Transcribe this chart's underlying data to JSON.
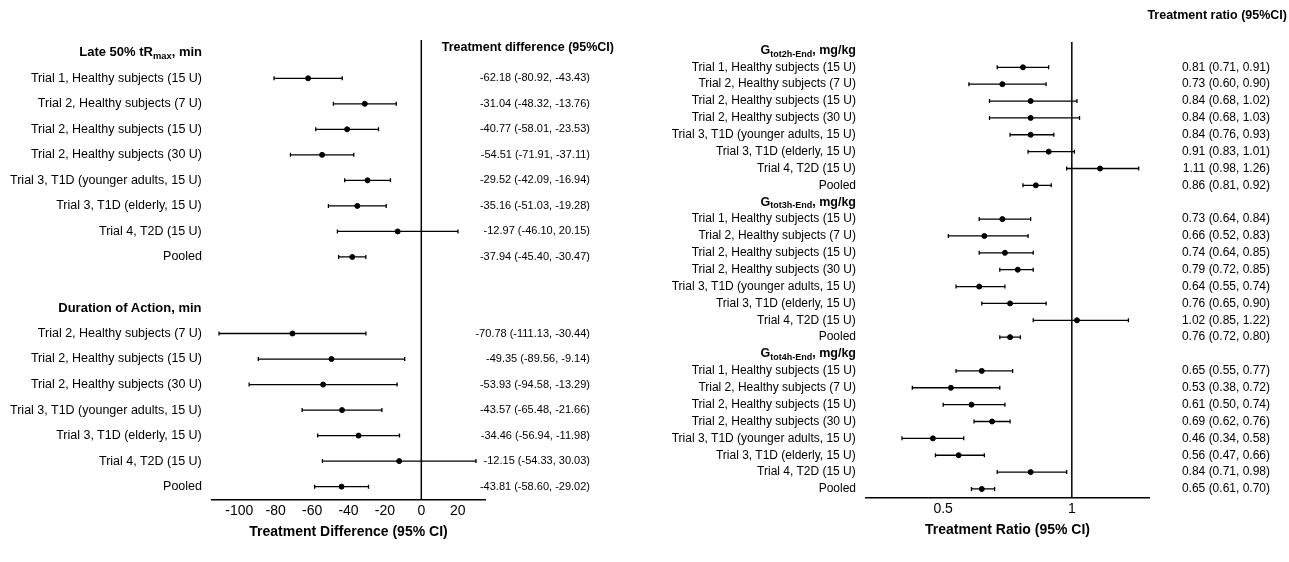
{
  "chart_data": [
    {
      "type": "scatter",
      "orientation": "horizontal",
      "annotations": [
        "Treatment difference (95%CI)"
      ],
      "xlabel": "Treatment Difference (95% CI)",
      "color": "#000000",
      "marker": "circle",
      "xlim": [
        -115,
        35
      ],
      "xticks": [
        -100,
        -80,
        -60,
        -40,
        -20,
        0,
        20
      ],
      "categories": [
        "Late 50% tR$_{max}$, min",
        "Trial 1, Healthy subjects (15 U)",
        "Trial 2, Healthy subjects (7 U)",
        "Trial 2, Healthy subjects (15 U)",
        "Trial 2, Healthy subjects (30 U)",
        "Trial 3, T1D (younger adults, 15 U)",
        "Trial 3, T1D (elderly, 15 U)",
        "Trial 4, T2D (15 U)",
        "Pooled",
        null,
        "Duration of Action, min",
        "Trial 2, Healthy subjects (7 U)",
        "Trial 2, Healthy subjects (15 U)",
        "Trial 2, Healthy subjects (30 U)",
        "Trial 3, T1D (younger adults, 15 U)",
        "Trial 3, T1D (elderly, 15 U)",
        "Trial 4, T2D (15 U)",
        "Pooled"
      ],
      "values": [
        null,
        -62.18,
        -31.04,
        -40.77,
        -54.51,
        -29.52,
        -35.16,
        -12.97,
        -37.94,
        null,
        null,
        -70.78,
        -49.35,
        -53.93,
        -43.57,
        -34.46,
        -12.15,
        -43.81
      ],
      "errors": [
        null,
        [
          -80.92,
          -43.43
        ],
        [
          -48.32,
          -13.76
        ],
        [
          -58.01,
          -23.53
        ],
        [
          -71.91,
          -37.11
        ],
        [
          -42.09,
          -16.94
        ],
        [
          -51.03,
          -19.28
        ],
        [
          -46.1,
          20.15
        ],
        [
          -45.4,
          -30.47
        ],
        null,
        null,
        [
          -111.13,
          -30.44
        ],
        [
          -89.56,
          -9.14
        ],
        [
          -94.58,
          -13.29
        ],
        [
          -65.48,
          -21.66
        ],
        [
          -56.94,
          -11.98
        ],
        [
          -54.33,
          30.03
        ],
        [
          -58.6,
          -29.02
        ]
      ],
      "value_labels": [
        null,
        "-62.18 (-80.92, -43.43)",
        "-31.04 (-48.32, -13.76)",
        "-40.77 (-58.01, -23.53)",
        "-54.51 (-71.91, -37.11)",
        "-29.52 (-42.09, -16.94)",
        "-35.16 (-51.03, -19.28)",
        "-12.97 (-46.10, 20.15)",
        "-37.94 (-45.40, -30.47)",
        null,
        null,
        "-70.78 (-111.13, -30.44)",
        "-49.35 (-89.56, -9.14)",
        "-53.93 (-94.58, -13.29)",
        "-43.57 (-65.48, -21.66)",
        "-34.46 (-56.94, -11.98)",
        "-12.15 (-54.33, 30.03)",
        "-43.81 (-58.60, -29.02)"
      ],
      "ref_lines": [
        {
          "axis": "x",
          "value": 0
        }
      ]
    },
    {
      "type": "scatter",
      "orientation": "horizontal",
      "annotations": [
        "Treatment ratio (95%CI)"
      ],
      "xlabel": "Treatment Ratio (95% CI)",
      "color": "#000000",
      "marker": "circle",
      "xlim": [
        0.2,
        1.3
      ],
      "xticks": [
        0.5,
        1
      ],
      "categories": [
        "G$_{tot2h-End}$, mg/kg",
        "Trial 1, Healthy subjects (15 U)",
        "Trial 2, Healthy subjects (7 U)",
        "Trial 2, Healthy subjects (15 U)",
        "Trial 2, Healthy subjects (30 U)",
        "Trial 3, T1D (younger adults, 15 U)",
        "Trial 3, T1D (elderly, 15 U)",
        "Trial 4, T2D (15 U)",
        "Pooled",
        "G$_{tot3h-End}$, mg/kg",
        "Trial 1, Healthy subjects (15 U)",
        "Trial 2, Healthy subjects (7 U)",
        "Trial 2, Healthy subjects (15 U)",
        "Trial 2, Healthy subjects (30 U)",
        "Trial 3, T1D (younger adults, 15 U)",
        "Trial 3, T1D (elderly, 15 U)",
        "Trial 4, T2D (15 U)",
        "Pooled",
        "G$_{tot4h-End}$, mg/kg",
        "Trial 1, Healthy subjects (15 U)",
        "Trial 2, Healthy subjects (7 U)",
        "Trial 2, Healthy subjects (15 U)",
        "Trial 2, Healthy subjects (30 U)",
        "Trial 3, T1D (younger adults, 15 U)",
        "Trial 3, T1D (elderly, 15 U)",
        "Trial 4, T2D (15 U)",
        "Pooled"
      ],
      "values": [
        null,
        0.81,
        0.73,
        0.84,
        0.84,
        0.84,
        0.91,
        1.11,
        0.86,
        null,
        0.73,
        0.66,
        0.74,
        0.79,
        0.64,
        0.76,
        1.02,
        0.76,
        null,
        0.65,
        0.53,
        0.61,
        0.69,
        0.46,
        0.56,
        0.84,
        0.65
      ],
      "errors": [
        null,
        [
          0.71,
          0.91
        ],
        [
          0.6,
          0.9
        ],
        [
          0.68,
          1.02
        ],
        [
          0.68,
          1.03
        ],
        [
          0.76,
          0.93
        ],
        [
          0.83,
          1.01
        ],
        [
          0.98,
          1.26
        ],
        [
          0.81,
          0.92
        ],
        null,
        [
          0.64,
          0.84
        ],
        [
          0.52,
          0.83
        ],
        [
          0.64,
          0.85
        ],
        [
          0.72,
          0.85
        ],
        [
          0.55,
          0.74
        ],
        [
          0.65,
          0.9
        ],
        [
          0.85,
          1.22
        ],
        [
          0.72,
          0.8
        ],
        null,
        [
          0.55,
          0.77
        ],
        [
          0.38,
          0.72
        ],
        [
          0.5,
          0.74
        ],
        [
          0.62,
          0.76
        ],
        [
          0.34,
          0.58
        ],
        [
          0.47,
          0.66
        ],
        [
          0.71,
          0.98
        ],
        [
          0.61,
          0.7
        ]
      ],
      "value_labels": [
        null,
        "0.81 (0.71, 0.91)",
        "0.73 (0.60, 0.90)",
        "0.84 (0.68, 1.02)",
        "0.84 (0.68, 1.03)",
        "0.84 (0.76, 0.93)",
        "0.91 (0.83, 1.01)",
        "1.11 (0.98, 1.26)",
        "0.86 (0.81, 0.92)",
        null,
        "0.73 (0.64, 0.84)",
        "0.66 (0.52, 0.83)",
        "0.74 (0.64, 0.85)",
        "0.79 (0.72, 0.85)",
        "0.64 (0.55, 0.74)",
        "0.76 (0.65, 0.90)",
        "1.02 (0.85, 1.22)",
        "0.76 (0.72, 0.80)",
        null,
        "0.65 (0.55, 0.77)",
        "0.53 (0.38, 0.72)",
        "0.61 (0.50, 0.74)",
        "0.69 (0.62, 0.76)",
        "0.46 (0.34, 0.58)",
        "0.56 (0.47, 0.66)",
        "0.84 (0.71, 0.98)",
        "0.65 (0.61, 0.70)"
      ],
      "ref_lines": [
        {
          "axis": "x",
          "value": 1
        }
      ]
    }
  ]
}
